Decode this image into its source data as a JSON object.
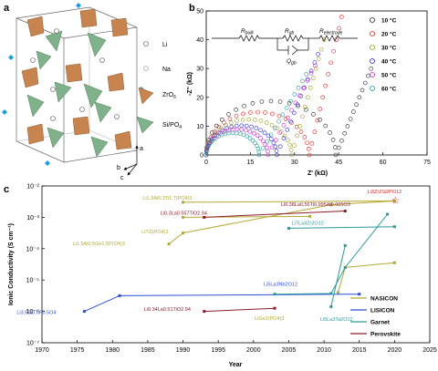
{
  "panels": {
    "a": "a",
    "b": "b",
    "c": "c"
  },
  "crystal": {
    "legend": [
      "Li",
      "Na",
      "ZrO6",
      "Si/PO4"
    ],
    "legend_html": {
      "ZrO6": [
        "ZrO",
        "6"
      ],
      "Si/PO4": [
        "Si/PO",
        "4"
      ]
    },
    "axes": {
      "a": "a",
      "b": "b",
      "c": "c"
    }
  },
  "colors": {
    "zr": "#c8844e",
    "si": "#7fb28a",
    "nasicon": "#b5a830",
    "lisicon": "#2b4fd6",
    "garnet": "#2a9a98",
    "perovskite": "#8c1d2b"
  },
  "chart_data": [
    {
      "type": "scatter",
      "panel": "b",
      "xlabel": "Z' (kΩ)",
      "ylabel": "-Z'' (kΩ)",
      "xlim": [
        0,
        75
      ],
      "ylim": [
        0,
        50
      ],
      "xticks": [
        "0",
        "15",
        "30",
        "45",
        "60",
        "75"
      ],
      "yticks": [
        "0",
        "10",
        "20",
        "30",
        "40",
        "50"
      ],
      "circuit": {
        "bulk": "R_bulk",
        "gb_r": "R_gb",
        "gb_q": "Q_gb",
        "electrode": "R_electrode"
      },
      "series": [
        {
          "name": "10 °C",
          "color": "#222222",
          "arc_start": 0,
          "arc_end": 44,
          "spike_end": [
            56,
            30
          ]
        },
        {
          "name": "20 °C",
          "color": "#d62020",
          "arc_start": 0,
          "arc_end": 35,
          "spike_end": [
            46,
            48
          ]
        },
        {
          "name": "30 °C",
          "color": "#9a9a1a",
          "arc_start": 0,
          "arc_end": 29,
          "spike_end": [
            40,
            40
          ]
        },
        {
          "name": "40 °C",
          "color": "#2222cc",
          "arc_start": 0,
          "arc_end": 24,
          "spike_end": [
            38,
            35
          ]
        },
        {
          "name": "50 °C",
          "color": "#cc22cc",
          "arc_start": 0,
          "arc_end": 21,
          "spike_end": [
            37,
            31
          ]
        },
        {
          "name": "60 °C",
          "color": "#1a9a9a",
          "arc_start": 0,
          "arc_end": 18,
          "spike_end": [
            34,
            28
          ]
        }
      ]
    },
    {
      "type": "line",
      "panel": "c",
      "xlabel": "Year",
      "ylabel": "Ionic Conductivity (S cm⁻¹)",
      "xlim": [
        1970,
        2025
      ],
      "ylim_log": [
        -7,
        -2
      ],
      "xticks": [
        "1970",
        "1975",
        "1980",
        "1985",
        "1990",
        "1995",
        "2000",
        "2005",
        "2010",
        "2015",
        "2020",
        "2025"
      ],
      "yticks": [
        "10⁻⁷",
        "10⁻⁶",
        "10⁻⁵",
        "10⁻⁴",
        "10⁻³",
        "10⁻²"
      ],
      "legend": [
        "NASICON",
        "LISICON",
        "Garnet",
        "Perovskite"
      ],
      "series": [
        {
          "name": "NASICON",
          "lines": [
            [
              [
                1990,
                -2.52
              ],
              [
                2020,
                -2.48
              ]
            ],
            [
              [
                1988,
                -3.85
              ],
              [
                1990,
                -3.5
              ],
              [
                2011,
                -2.6
              ],
              [
                2020,
                -2.48
              ]
            ],
            [
              [
                1990,
                -3.0
              ],
              [
                2008,
                -2.97
              ]
            ],
            [
              [
                2012,
                -5.4
              ],
              [
                2013,
                -4.6
              ],
              [
                2020,
                -4.45
              ]
            ]
          ]
        },
        {
          "name": "LISICON",
          "lines": [
            [
              [
                1976,
                -6.0
              ],
              [
                1981,
                -5.5
              ],
              [
                2015,
                -5.45
              ]
            ]
          ]
        },
        {
          "name": "Garnet",
          "lines": [
            [
              [
                2003,
                -5.45
              ],
              [
                2011,
                -5.43
              ],
              [
                2013,
                -4.6
              ],
              [
                2019,
                -2.9
              ]
            ],
            [
              [
                2011,
                -5.85
              ],
              [
                2013,
                -3.9
              ]
            ],
            [
              [
                2005,
                -3.35
              ],
              [
                2020,
                -3.3
              ]
            ]
          ]
        },
        {
          "name": "Perovskite",
          "lines": [
            [
              [
                1993,
                -3.0
              ],
              [
                2013,
                -2.8
              ]
            ],
            [
              [
                1993,
                -6.0
              ],
              [
                2003,
                -5.9
              ]
            ]
          ]
        }
      ],
      "annotations": [
        {
          "text": "Li1.3Al0.3Ti1.7(PO4)3",
          "x": 1991,
          "y": -2.52
        },
        {
          "text": "Li0.3La0.557TiO2.94",
          "x": 1993,
          "y": -3.0
        },
        {
          "text": "LiTi2(PO4)3",
          "x": 1988,
          "y": -3.6
        },
        {
          "text": "Li1.5Al0.5Ge1.5P(O4)3",
          "x": 1986,
          "y": -3.95
        },
        {
          "text": "Li3.5Si0.5P0.5O4",
          "x": 1976,
          "y": -6.0
        },
        {
          "text": "Li0.34La0.51TiO2.94",
          "x": 1993,
          "y": -5.9
        },
        {
          "text": "LiGe2(PO4)3",
          "x": 2003,
          "y": -6.1
        },
        {
          "text": "Li5La3Ta2O12",
          "x": 2011,
          "y": -6.1
        },
        {
          "text": "Li5La3Nb2O12",
          "x": 2003,
          "y": -5.3
        },
        {
          "text": "Li7La3Zr2O12",
          "x": 2008,
          "y": -3.35
        },
        {
          "text": "Li0.38La0.56Ti0.995Al0.005O3",
          "x": 2011,
          "y": -2.75
        },
        {
          "text": "Li3Zr2Si2PO12",
          "x": 2019,
          "y": -2.35
        }
      ]
    }
  ]
}
